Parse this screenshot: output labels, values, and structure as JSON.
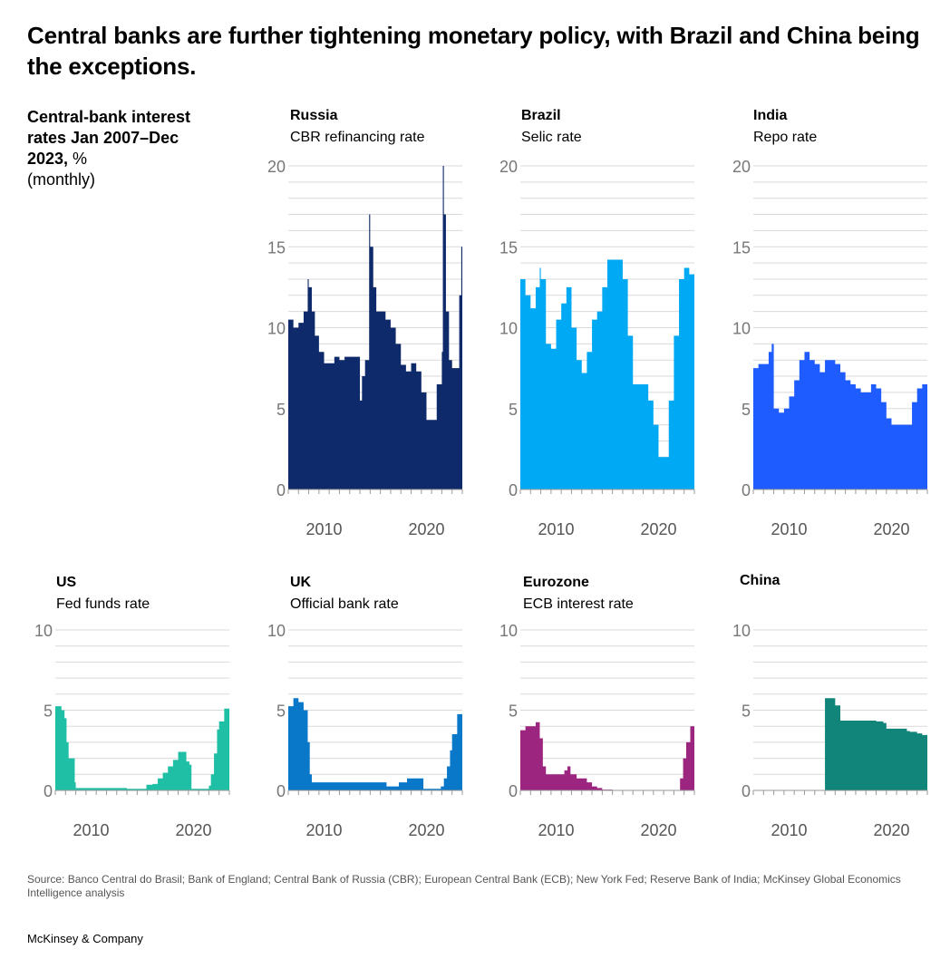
{
  "title": "Central banks are further tightening monetary policy, with Brazil and China being the exceptions.",
  "subtitle": {
    "bold": "Central-bank interest rates Jan 2007–Dec 2023,",
    "unit": " %",
    "note": "(monthly)"
  },
  "source": "Source: Banco Central do Brasil; Bank of England; Central Bank of Russia (CBR); European Central Bank (ECB); New York Fed; Reserve Bank of India; McKinsey Global Economics Intelligence analysis",
  "brand": "McKinsey & Company",
  "chart_data": [
    {
      "type": "area",
      "name": "Russia",
      "subtitle": "CBR refinancing rate",
      "color": "#0f2a6b",
      "ylim": [
        0,
        20
      ],
      "yticks": [
        0,
        5,
        10,
        15,
        20
      ],
      "xticks": [
        2010,
        2020
      ],
      "xlim": [
        2007,
        2024
      ],
      "x": [
        2007.0,
        2007.5,
        2008.0,
        2008.5,
        2008.9,
        2009.0,
        2009.3,
        2009.6,
        2010.0,
        2010.5,
        2011.0,
        2011.5,
        2012.0,
        2012.5,
        2013.0,
        2013.5,
        2014.0,
        2014.2,
        2014.5,
        2014.9,
        2015.0,
        2015.3,
        2015.6,
        2016.0,
        2016.5,
        2017.0,
        2017.5,
        2018.0,
        2018.5,
        2019.0,
        2019.5,
        2020.0,
        2020.5,
        2021.0,
        2021.5,
        2022.0,
        2022.1,
        2022.2,
        2022.4,
        2022.7,
        2023.0,
        2023.5,
        2023.7,
        2023.9,
        2024.0
      ],
      "values": [
        10.5,
        10.0,
        10.3,
        11.0,
        13.0,
        12.5,
        11.0,
        9.5,
        8.5,
        7.8,
        7.8,
        8.2,
        8.0,
        8.2,
        8.2,
        8.2,
        5.5,
        7.0,
        8.0,
        17.0,
        15.0,
        12.5,
        11.0,
        11.0,
        10.5,
        10.0,
        9.0,
        7.7,
        7.3,
        7.8,
        7.3,
        6.0,
        4.3,
        4.3,
        6.5,
        8.5,
        20.0,
        17.0,
        11.0,
        8.0,
        7.5,
        7.5,
        12.0,
        15.0,
        15.0
      ]
    },
    {
      "type": "area",
      "name": "Brazil",
      "subtitle": "Selic rate",
      "color": "#00a9f4",
      "ylim": [
        0,
        20
      ],
      "yticks": [
        0,
        5,
        10,
        15,
        20
      ],
      "xticks": [
        2010,
        2020
      ],
      "xlim": [
        2007,
        2024
      ],
      "x": [
        2007.0,
        2007.5,
        2008.0,
        2008.5,
        2008.9,
        2009.0,
        2009.5,
        2010.0,
        2010.5,
        2011.0,
        2011.5,
        2012.0,
        2012.5,
        2013.0,
        2013.5,
        2014.0,
        2014.5,
        2015.0,
        2015.5,
        2016.0,
        2016.5,
        2017.0,
        2017.5,
        2018.0,
        2018.5,
        2019.0,
        2019.5,
        2020.0,
        2020.5,
        2021.0,
        2021.5,
        2022.0,
        2022.5,
        2023.0,
        2023.5,
        2024.0
      ],
      "values": [
        13.0,
        12.0,
        11.2,
        12.5,
        13.7,
        13.0,
        9.0,
        8.7,
        10.5,
        11.5,
        12.5,
        10.0,
        8.0,
        7.2,
        8.5,
        10.5,
        11.0,
        12.5,
        14.2,
        14.2,
        14.2,
        13.0,
        9.5,
        6.5,
        6.5,
        6.5,
        5.5,
        4.0,
        2.0,
        2.0,
        5.5,
        9.5,
        13.0,
        13.7,
        13.3,
        12.0
      ]
    },
    {
      "type": "area",
      "name": "India",
      "subtitle": "Repo rate",
      "color": "#1f5cff",
      "ylim": [
        0,
        20
      ],
      "yticks": [
        0,
        5,
        10,
        15,
        20
      ],
      "xticks": [
        2010,
        2020
      ],
      "xlim": [
        2007,
        2024
      ],
      "x": [
        2007.0,
        2007.5,
        2008.0,
        2008.5,
        2008.8,
        2009.0,
        2009.5,
        2010.0,
        2010.5,
        2011.0,
        2011.5,
        2012.0,
        2012.5,
        2013.0,
        2013.5,
        2014.0,
        2014.5,
        2015.0,
        2015.5,
        2016.0,
        2016.5,
        2017.0,
        2017.5,
        2018.0,
        2018.5,
        2019.0,
        2019.5,
        2020.0,
        2020.5,
        2021.0,
        2021.5,
        2022.0,
        2022.5,
        2023.0,
        2023.5,
        2024.0
      ],
      "values": [
        7.5,
        7.75,
        7.75,
        8.5,
        9.0,
        5.0,
        4.75,
        5.0,
        5.75,
        6.75,
        8.0,
        8.5,
        8.0,
        7.75,
        7.25,
        8.0,
        8.0,
        7.75,
        7.25,
        6.75,
        6.5,
        6.25,
        6.0,
        6.0,
        6.5,
        6.25,
        5.4,
        4.4,
        4.0,
        4.0,
        4.0,
        4.0,
        5.4,
        6.25,
        6.5,
        6.5
      ]
    },
    {
      "type": "area",
      "name": "US",
      "subtitle": "Fed funds rate",
      "color": "#1fbfa5",
      "ylim": [
        0,
        10
      ],
      "yticks": [
        0,
        5,
        10
      ],
      "xticks": [
        2010,
        2020
      ],
      "xlim": [
        2007,
        2024
      ],
      "x": [
        2007.0,
        2007.6,
        2007.9,
        2008.1,
        2008.3,
        2008.6,
        2008.9,
        2009.0,
        2010.0,
        2012.0,
        2014.0,
        2015.9,
        2016.5,
        2017.0,
        2017.5,
        2018.0,
        2018.5,
        2019.0,
        2019.5,
        2019.8,
        2020.1,
        2020.3,
        2021.0,
        2022.0,
        2022.2,
        2022.5,
        2022.8,
        2023.0,
        2023.5,
        2024.0
      ],
      "values": [
        5.25,
        5.0,
        4.5,
        3.0,
        2.0,
        2.0,
        0.5,
        0.15,
        0.15,
        0.15,
        0.1,
        0.35,
        0.4,
        0.75,
        1.1,
        1.5,
        1.9,
        2.4,
        2.4,
        1.8,
        1.6,
        0.1,
        0.1,
        0.3,
        1.0,
        2.3,
        3.8,
        4.3,
        5.1,
        5.33
      ]
    },
    {
      "type": "area",
      "name": "UK",
      "subtitle": "Official bank rate",
      "color": "#0a78c8",
      "ylim": [
        0,
        10
      ],
      "yticks": [
        0,
        5,
        10
      ],
      "xticks": [
        2010,
        2020
      ],
      "xlim": [
        2007,
        2024
      ],
      "x": [
        2007.0,
        2007.5,
        2008.0,
        2008.5,
        2008.9,
        2009.1,
        2009.3,
        2010.0,
        2012.0,
        2014.0,
        2016.0,
        2016.6,
        2017.0,
        2017.8,
        2018.6,
        2019.0,
        2020.0,
        2020.2,
        2021.0,
        2021.9,
        2022.2,
        2022.5,
        2022.8,
        2023.0,
        2023.5,
        2024.0
      ],
      "values": [
        5.25,
        5.75,
        5.5,
        5.0,
        3.0,
        1.0,
        0.5,
        0.5,
        0.5,
        0.5,
        0.5,
        0.25,
        0.25,
        0.5,
        0.75,
        0.75,
        0.75,
        0.1,
        0.1,
        0.25,
        0.75,
        1.5,
        2.5,
        3.5,
        4.75,
        5.25
      ]
    },
    {
      "type": "area",
      "name": "Eurozone",
      "subtitle": "ECB interest rate",
      "color": "#9c2580",
      "ylim": [
        0,
        10
      ],
      "yticks": [
        0,
        5,
        10
      ],
      "xticks": [
        2010,
        2020
      ],
      "xlim": [
        2007,
        2024
      ],
      "x": [
        2007.0,
        2007.5,
        2008.0,
        2008.5,
        2008.9,
        2009.2,
        2009.5,
        2010.0,
        2011.0,
        2011.3,
        2011.6,
        2011.9,
        2012.5,
        2013.0,
        2013.5,
        2014.0,
        2014.5,
        2015.0,
        2016.0,
        2020.0,
        2022.4,
        2022.6,
        2022.9,
        2023.2,
        2023.6,
        2024.0
      ],
      "values": [
        3.75,
        4.0,
        4.0,
        4.25,
        3.25,
        1.5,
        1.0,
        1.0,
        1.0,
        1.25,
        1.5,
        1.0,
        0.75,
        0.75,
        0.5,
        0.25,
        0.15,
        0.05,
        0.0,
        0.0,
        0.0,
        0.75,
        2.0,
        3.0,
        4.0,
        4.5
      ]
    },
    {
      "type": "area",
      "name": "China",
      "subtitle": "",
      "color": "#11857a",
      "ylim": [
        0,
        10
      ],
      "yticks": [
        0,
        5,
        10
      ],
      "xticks": [
        2010,
        2020
      ],
      "xlim": [
        2007,
        2024
      ],
      "x": [
        2013.9,
        2014.0,
        2014.5,
        2015.0,
        2015.5,
        2016.0,
        2017.0,
        2018.0,
        2019.0,
        2019.7,
        2020.0,
        2021.0,
        2022.0,
        2022.3,
        2023.0,
        2023.5,
        2024.0
      ],
      "values": [
        0.0,
        5.75,
        5.75,
        5.3,
        4.35,
        4.35,
        4.35,
        4.35,
        4.3,
        4.2,
        3.85,
        3.85,
        3.7,
        3.65,
        3.55,
        3.45,
        3.45
      ]
    }
  ]
}
